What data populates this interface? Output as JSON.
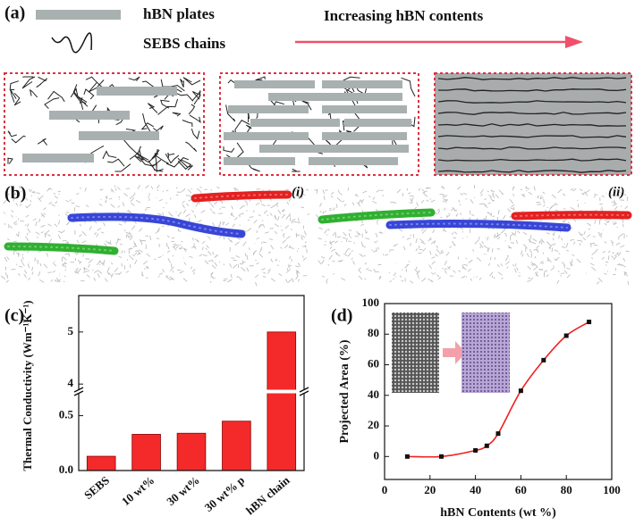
{
  "panel_a": {
    "label": "(a)",
    "legend": [
      "hBN plates",
      "SEBS chains"
    ],
    "arrow_text": "Increasing hBN contents"
  },
  "panel_b": {
    "label": "(b)",
    "insets": [
      "(i)",
      "(ii)"
    ]
  },
  "chart_data": [
    {
      "type": "bar",
      "label": "(c)",
      "y_label": "Thermal Conductivity (Wm⁻¹K⁻¹)",
      "categories": [
        "SEBS",
        "10 wt%",
        "30 wt%",
        "30 wt% p",
        "hBN chain"
      ],
      "values": [
        0.13,
        0.33,
        0.34,
        0.45,
        5.0
      ],
      "color": "#f42a2a",
      "ylim": [
        0,
        5.7
      ],
      "ybreak": [
        0.7,
        3.9
      ],
      "yticks": [
        {
          "value": 0,
          "label": "0.0"
        },
        0.5,
        4,
        5
      ]
    },
    {
      "type": "scatter",
      "label": "(d)",
      "x_label": "hBN Contents (wt %)",
      "y_label": "Projected Area (%)",
      "x": [
        10,
        25,
        40,
        45,
        50,
        60,
        70,
        80,
        90
      ],
      "values": [
        0,
        0,
        4,
        7,
        15,
        43,
        63,
        79,
        88
      ],
      "color": "#111111",
      "line_color": "#f02020",
      "xlim": [
        0,
        100
      ],
      "ylim": [
        -15,
        100
      ],
      "xticks": [
        0,
        20,
        40,
        60,
        80,
        100
      ],
      "yticks": [
        0,
        20,
        40,
        60,
        80,
        100
      ]
    }
  ]
}
